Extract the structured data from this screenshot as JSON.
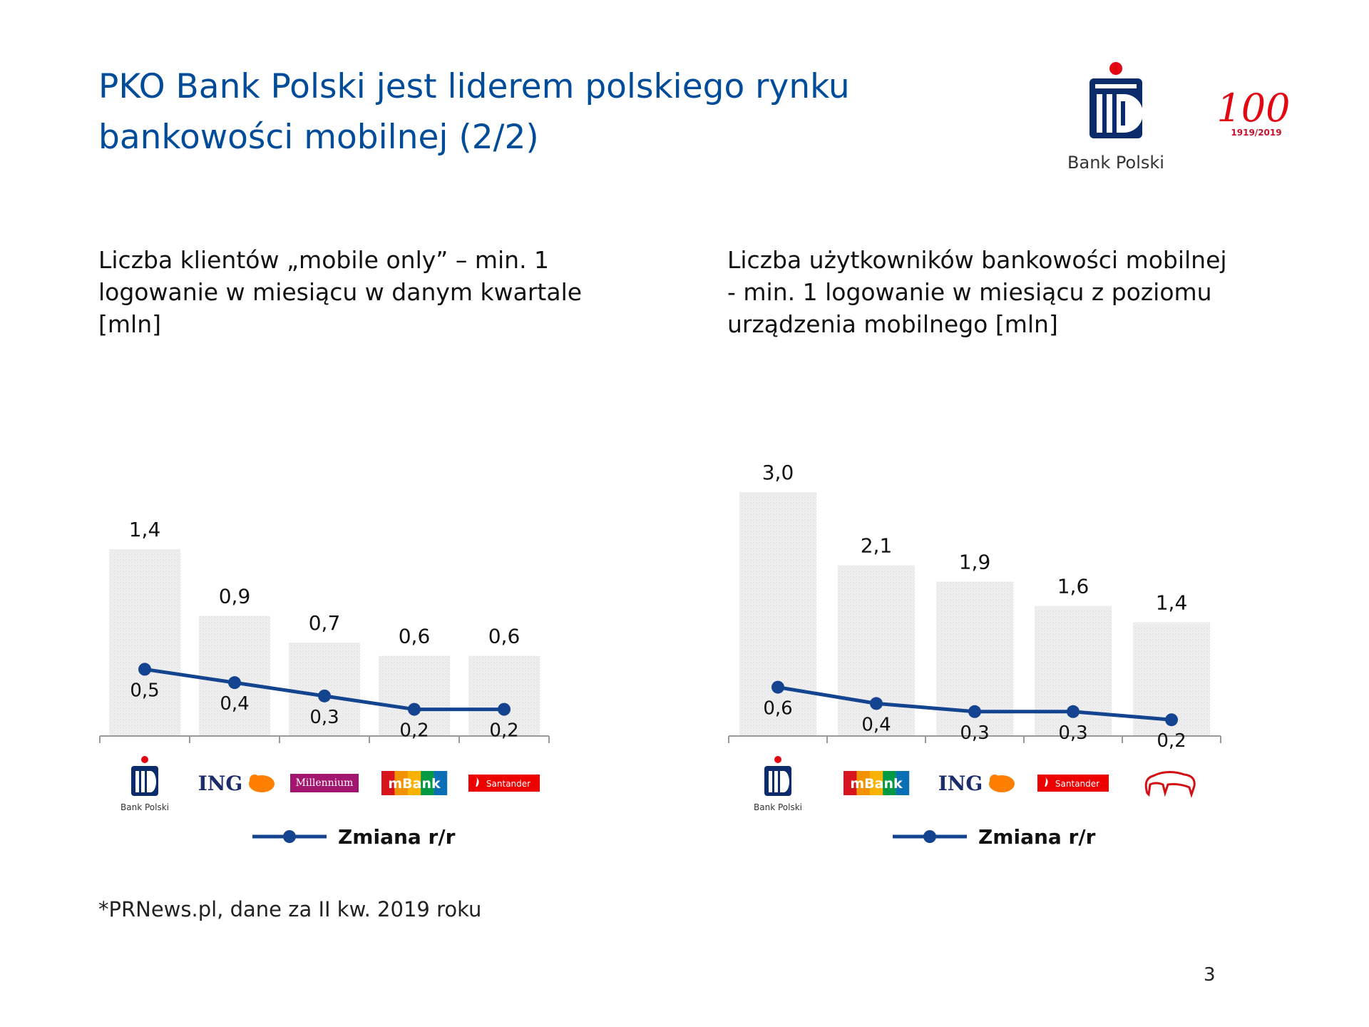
{
  "title": "PKO Bank Polski jest liderem polskiego rynku bankowości mobilnej (2/2)",
  "logo": {
    "tagline": "Bank Polski",
    "anniversary_mark": "100",
    "anniversary_years": "1919/2019"
  },
  "colors": {
    "brand_blue": "#004c9a",
    "line_blue": "#14438f",
    "bar_grey": "#ececec",
    "accent_red": "#e30613"
  },
  "chart_data": [
    {
      "type": "bar",
      "title": "Liczba klientów „mobile only” – min. 1 logowanie w miesiącu w danym kwartale [mln]",
      "categories": [
        "Bank Polski",
        "ING",
        "Millennium",
        "mBank",
        "Santander"
      ],
      "category_logos": [
        "pko-logo",
        "ing-logo",
        "millennium-logo",
        "mbank-logo",
        "santander-logo"
      ],
      "values": [
        1.4,
        0.9,
        0.7,
        0.6,
        0.6
      ],
      "value_labels": [
        "1,4",
        "0,9",
        "0,7",
        "0,6",
        "0,6"
      ],
      "line_series": {
        "name": "Zmiana r/r",
        "values": [
          0.5,
          0.4,
          0.3,
          0.2,
          0.2
        ],
        "value_labels": [
          "0,5",
          "0,4",
          "0,3",
          "0,2",
          "0,2"
        ]
      },
      "ylim": [
        0,
        1.4
      ],
      "legend": "bottom-center",
      "grid": false
    },
    {
      "type": "bar",
      "title": "Liczba użytkowników bankowości mobilnej - min. 1 logowanie w miesiącu z poziomu urządzenia mobilnego [mln]",
      "categories": [
        "Bank Polski",
        "mBank",
        "ING",
        "Santander",
        "Bank Pekao"
      ],
      "category_logos": [
        "pko-logo",
        "mbank-logo",
        "ing-logo",
        "santander-logo",
        "pekao-logo"
      ],
      "values": [
        3.0,
        2.1,
        1.9,
        1.6,
        1.4
      ],
      "value_labels": [
        "3,0",
        "2,1",
        "1,9",
        "1,6",
        "1,4"
      ],
      "line_series": {
        "name": "Zmiana r/r",
        "values": [
          0.6,
          0.4,
          0.3,
          0.3,
          0.2
        ],
        "value_labels": [
          "0,6",
          "0,4",
          "0,3",
          "0,3",
          "0,2"
        ]
      },
      "ylim": [
        0,
        3.0
      ],
      "legend": "bottom-center",
      "grid": false
    }
  ],
  "footnote": "*PRNews.pl, dane za II kw. 2019 roku",
  "page_number": "3"
}
